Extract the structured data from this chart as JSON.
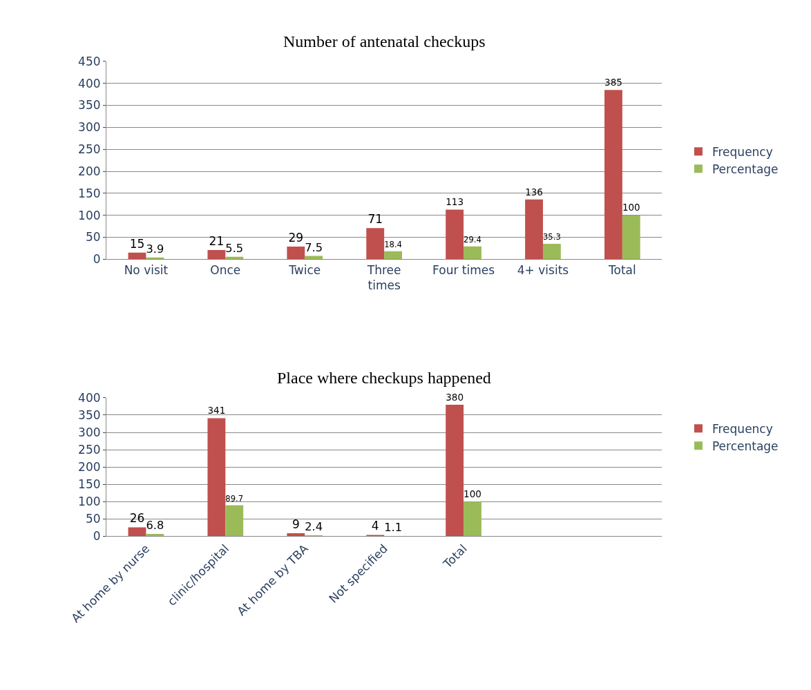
{
  "chart_data": [
    {
      "type": "bar",
      "title": "Number of antenatal checkups",
      "categories": [
        "No visit",
        "Once",
        "Twice",
        "Three times",
        "Four times",
        "4+ visits",
        "Total"
      ],
      "series": [
        {
          "name": "Frequency",
          "color": "#c0504d",
          "values": [
            15,
            21,
            29,
            71,
            113,
            136,
            385
          ]
        },
        {
          "name": "Percentage",
          "color": "#9bbb59",
          "values": [
            3.9,
            5.5,
            7.5,
            18.4,
            29.4,
            35.3,
            100
          ]
        }
      ],
      "ylim": [
        0,
        450
      ],
      "yticks": [
        0,
        50,
        100,
        150,
        200,
        250,
        300,
        350,
        400,
        450
      ],
      "grid": "y",
      "legend": "right",
      "data_labels": true
    },
    {
      "type": "bar",
      "title": "Place where checkups happened",
      "categories": [
        "At home by nurse",
        "clinic/hospital",
        "At home by TBA",
        "Not specified",
        "Total"
      ],
      "series": [
        {
          "name": "Frequency",
          "color": "#c0504d",
          "values": [
            26,
            341,
            9,
            4,
            380
          ]
        },
        {
          "name": "Percentage",
          "color": "#9bbb59",
          "values": [
            6.8,
            89.7,
            2.4,
            1.1,
            100
          ]
        }
      ],
      "ylim": [
        0,
        400
      ],
      "yticks": [
        0,
        50,
        100,
        150,
        200,
        250,
        300,
        350,
        400
      ],
      "grid": "y",
      "legend": "right",
      "data_labels": true
    }
  ]
}
